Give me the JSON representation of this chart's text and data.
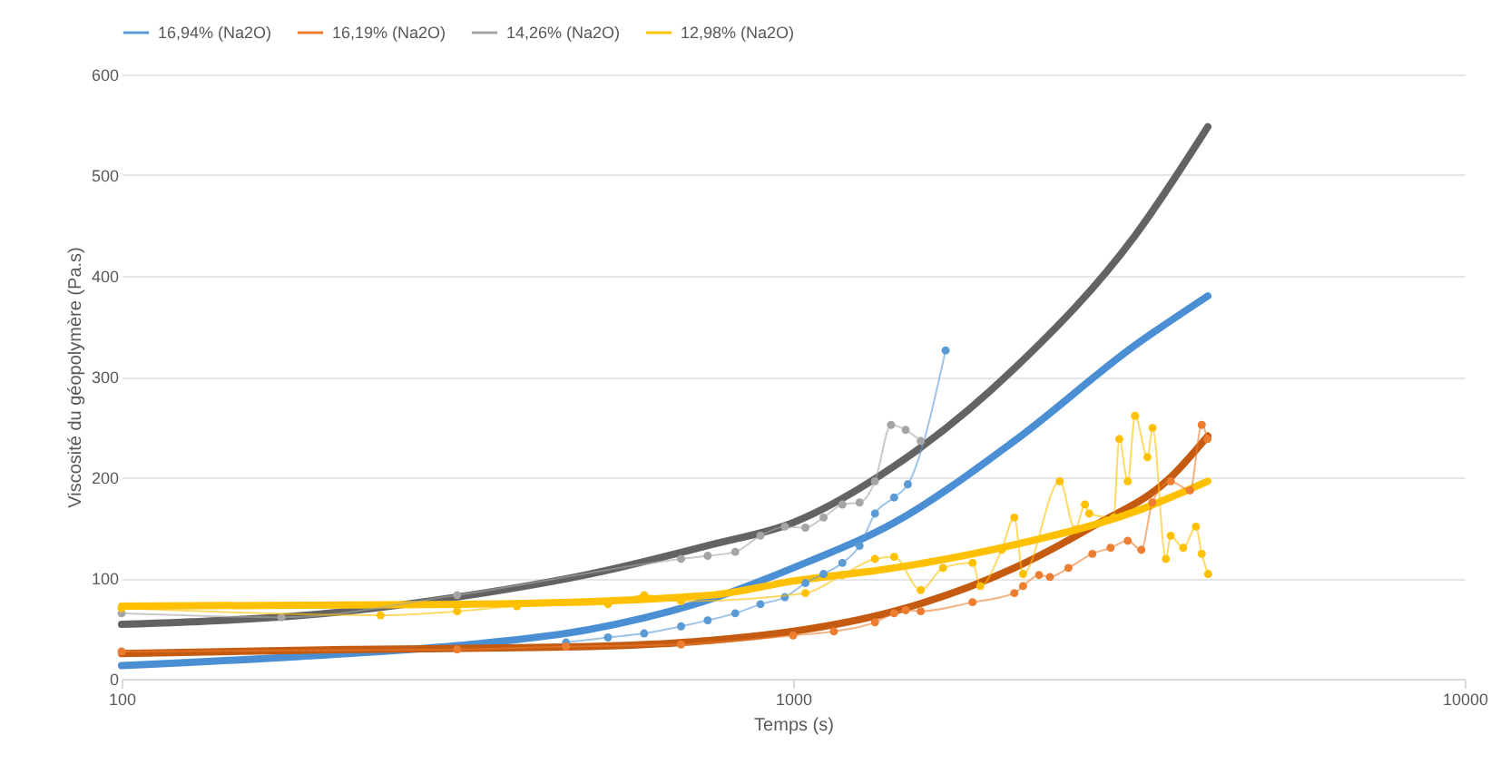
{
  "chart_data": {
    "type": "line",
    "xlabel": "Temps (s)",
    "ylabel": "Viscosité du géopolymère (Pa.s)",
    "log": "x",
    "xlim": [
      100,
      10000
    ],
    "xticks": [
      100,
      1000,
      10000
    ],
    "ylim": [
      0,
      600
    ],
    "yticks": [
      0,
      100,
      200,
      300,
      400,
      500,
      600
    ],
    "grid": "y",
    "legend": "top",
    "marker": "circle",
    "line_style": "solid",
    "series": [
      {
        "name": "16,94% (Na2O)",
        "color": "#5b9bd5",
        "x": [
          459,
          530,
          600,
          681,
          746,
          820,
          894,
          972,
          1043,
          1110,
          1184,
          1256,
          1324,
          1414,
          1482,
          1687
        ],
        "values": [
          36,
          41,
          45,
          52,
          58,
          65,
          74,
          81,
          95,
          104,
          115,
          132,
          164,
          180,
          193,
          326
        ]
      },
      {
        "name": "16,19% (Na2O)",
        "color": "#ed7d31",
        "x": [
          100,
          316,
          459,
          681,
          1000,
          1150,
          1324,
          1414,
          1471,
          1549,
          1850,
          2135,
          2200,
          2324,
          2412,
          2570,
          2790,
          2970,
          3150,
          3300,
          3427,
          3650,
          3900,
          4060,
          4140
        ],
        "values": [
          27,
          29,
          32,
          34,
          43,
          47,
          56,
          65,
          68,
          67,
          76,
          85,
          92,
          103,
          101,
          110,
          124,
          130,
          137,
          128,
          175,
          196,
          187,
          252,
          238
        ]
      },
      {
        "name": "14,26% (Na2O)",
        "color": "#a5a5a5",
        "x": [
          100,
          173,
          316,
          681,
          746,
          820,
          894,
          972,
          1043,
          1110,
          1184,
          1256,
          1324,
          1399,
          1471,
          1549
        ],
        "values": [
          65,
          61,
          83,
          119,
          122,
          126,
          142,
          151,
          150,
          160,
          173,
          175,
          196,
          252,
          247,
          236
        ]
      },
      {
        "name": "12,98% (Na2O)",
        "color": "#ffc000",
        "x": [
          100,
          243,
          316,
          388,
          530,
          600,
          681,
          1043,
          1184,
          1324,
          1414,
          1549,
          1672,
          1850,
          1900,
          2044,
          2135,
          2200,
          2495,
          2630,
          2720,
          2760,
          3000,
          3060,
          3150,
          3230,
          3370,
          3430,
          3590,
          3650,
          3810,
          3980,
          4060,
          4150
        ],
        "values": [
          70,
          63,
          67,
          72,
          74,
          83,
          77,
          85,
          103,
          119,
          121,
          88,
          110,
          115,
          92,
          128,
          160,
          104,
          196,
          148,
          173,
          164,
          160,
          238,
          196,
          261,
          220,
          249,
          119,
          142,
          130,
          151,
          124,
          104
        ]
      },
      {
        "type": "line",
        "marker": "none",
        "color": "#4a8fd4",
        "x": [
          100,
          217,
          330,
          498,
          754,
          1000,
          1414,
          2135,
          3230,
          4145
        ],
        "values": [
          13,
          25,
          34,
          49,
          79,
          110,
          155,
          236,
          331,
          380
        ]
      },
      {
        "type": "line",
        "marker": "none",
        "color": "#c55a11",
        "x": [
          100,
          217,
          498,
          754,
          1000,
          1414,
          2135,
          2790,
          3650,
          4145
        ],
        "values": [
          25,
          29,
          32,
          38,
          47,
          67,
          110,
          151,
          200,
          241
        ]
      },
      {
        "type": "line",
        "marker": "none",
        "color": "#636363",
        "x": [
          100,
          217,
          330,
          498,
          754,
          1000,
          1414,
          2135,
          3230,
          4145
        ],
        "values": [
          54,
          67,
          83,
          104,
          133,
          155,
          211,
          308,
          440,
          548
        ]
      },
      {
        "type": "line",
        "marker": "none",
        "color": "#ffc000",
        "x": [
          100,
          330,
          754,
          1000,
          1414,
          2135,
          3230,
          4145
        ],
        "values": [
          72,
          74,
          83,
          97,
          110,
          133,
          166,
          196
        ]
      }
    ]
  }
}
